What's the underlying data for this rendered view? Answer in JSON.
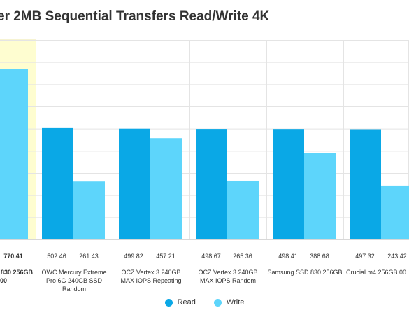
{
  "colors": {
    "read": "#0aa8e6",
    "write": "#5dd5fb",
    "highlight": "#fefdd0",
    "grid": "#e4e4e4"
  },
  "chart_data": {
    "type": "bar",
    "title": "er 2MB Sequential Transfers Read/Write 4K",
    "xlabel": "",
    "ylabel": "",
    "ylim": [
      0,
      900
    ],
    "grid": true,
    "legend_position": "bottom",
    "categories": [
      [
        "830 256GB",
        "00"
      ],
      [
        "OWC Mercury Extreme",
        "Pro 6G 240GB SSD",
        "Random"
      ],
      [
        "OCZ Vertex 3 240GB",
        "MAX IOPS Repeating"
      ],
      [
        "OCZ Vertex 3 240GB",
        "MAX IOPS Random"
      ],
      [
        "Samsung SSD 830 256GB"
      ],
      [
        "Crucial m4 256GB 00"
      ]
    ],
    "series": [
      {
        "name": "Read",
        "values": [
          null,
          502.46,
          499.82,
          498.67,
          498.41,
          497.32
        ]
      },
      {
        "name": "Write",
        "values": [
          770.41,
          261.43,
          457.21,
          265.36,
          388.68,
          243.42
        ]
      }
    ],
    "value_labels": {
      "Read": [
        "",
        "502.46",
        "499.82",
        "498.67",
        "498.41",
        "497.32"
      ],
      "Write": [
        "770.41",
        "261.43",
        "457.21",
        "265.36",
        "388.68",
        "243.42"
      ]
    }
  }
}
